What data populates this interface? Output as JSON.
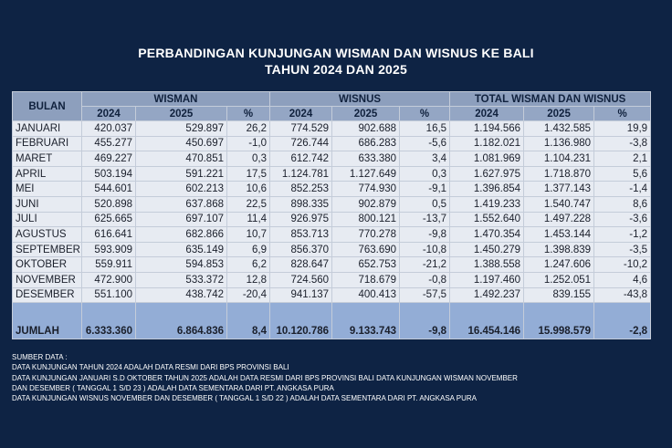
{
  "title": {
    "line1": "PERBANDINGAN KUNJUNGAN WISMAN DAN WISNUS KE BALI",
    "line2": "TAHUN 2024 DAN 2025"
  },
  "table": {
    "header": {
      "bulan": "BULAN",
      "groups": [
        "WISMAN",
        "WISNUS",
        "TOTAL WISMAN DAN WISNUS"
      ],
      "sub": [
        "2024",
        "2025",
        "%",
        "2024",
        "2025",
        "%",
        "2024",
        "2025",
        "%"
      ]
    },
    "rows": [
      [
        "JANUARI",
        "420.037",
        "529.897",
        "26,2",
        "774.529",
        "902.688",
        "16,5",
        "1.194.566",
        "1.432.585",
        "19,9"
      ],
      [
        "FEBRUARI",
        "455.277",
        "450.697",
        "-1,0",
        "726.744",
        "686.283",
        "-5,6",
        "1.182.021",
        "1.136.980",
        "-3,8"
      ],
      [
        "MARET",
        "469.227",
        "470.851",
        "0,3",
        "612.742",
        "633.380",
        "3,4",
        "1.081.969",
        "1.104.231",
        "2,1"
      ],
      [
        "APRIL",
        "503.194",
        "591.221",
        "17,5",
        "1.124.781",
        "1.127.649",
        "0,3",
        "1.627.975",
        "1.718.870",
        "5,6"
      ],
      [
        "MEI",
        "544.601",
        "602.213",
        "10,6",
        "852.253",
        "774.930",
        "-9,1",
        "1.396.854",
        "1.377.143",
        "-1,4"
      ],
      [
        "JUNI",
        "520.898",
        "637.868",
        "22,5",
        "898.335",
        "902.879",
        "0,5",
        "1.419.233",
        "1.540.747",
        "8,6"
      ],
      [
        "JULI",
        "625.665",
        "697.107",
        "11,4",
        "926.975",
        "800.121",
        "-13,7",
        "1.552.640",
        "1.497.228",
        "-3,6"
      ],
      [
        "AGUSTUS",
        "616.641",
        "682.866",
        "10,7",
        "853.713",
        "770.278",
        "-9,8",
        "1.470.354",
        "1.453.144",
        "-1,2"
      ],
      [
        "SEPTEMBER",
        "593.909",
        "635.149",
        "6,9",
        "856.370",
        "763.690",
        "-10,8",
        "1.450.279",
        "1.398.839",
        "-3,5"
      ],
      [
        "OKTOBER",
        "559.911",
        "594.853",
        "6,2",
        "828.647",
        "652.753",
        "-21,2",
        "1.388.558",
        "1.247.606",
        "-10,2"
      ],
      [
        "NOVEMBER",
        "472.900",
        "533.372",
        "12,8",
        "724.560",
        "718.679",
        "-0,8",
        "1.197.460",
        "1.252.051",
        "4,6"
      ],
      [
        "DESEMBER",
        "551.100",
        "438.742",
        "-20,4",
        "941.137",
        "400.413",
        "-57,5",
        "1.492.237",
        "839.155",
        "-43,8"
      ]
    ],
    "total": [
      "JUMLAH",
      "6.333.360",
      "6.864.836",
      "8,4",
      "10.120.786",
      "9.133.743",
      "-9,8",
      "16.454.146",
      "15.998.579",
      "-2,8"
    ]
  },
  "notes": [
    "SUMBER DATA :",
    "DATA KUNJUNGAN TAHUN 2024 ADALAH DATA RESMI DARI BPS PROVINSI BALI",
    "DATA KUNJUNGAN JANUARI S.D OKTOBER TAHUN 2025 ADALAH DATA RESMI DARI BPS PROVINSI BALI DATA KUNJUNGAN WISMAN NOVEMBER",
    "DAN DESEMBER  ( TANGGAL 1 S/D 23 )  ADALAH DATA SEMENTARA DARI PT. ANGKASA PURA",
    "DATA KUNJUNGAN WISNUS  NOVEMBER DAN DESEMBER  ( TANGGAL 1 S/D 22 )  ADALAH DATA SEMENTARA DARI PT. ANGKASA PURA"
  ]
}
